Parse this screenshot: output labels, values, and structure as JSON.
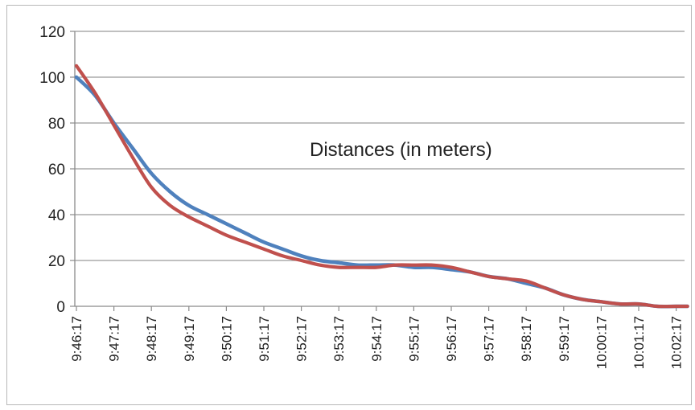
{
  "chart_data": {
    "type": "line",
    "annotation": "Distances (in meters)",
    "ylim": [
      0,
      120
    ],
    "y_ticks": [
      0,
      20,
      40,
      60,
      80,
      100,
      120
    ],
    "x_tick_labels": [
      "9:46:17",
      "9:47:17",
      "9:48:17",
      "9:49:17",
      "9:50:17",
      "9:51:17",
      "9:52:17",
      "9:53:17",
      "9:54:17",
      "9:55:17",
      "9:56:17",
      "9:57:17",
      "9:58:17",
      "9:59:17",
      "10:00:17",
      "10:01:17",
      "10:02:17"
    ],
    "grid": true,
    "legend": "none",
    "x_minutes_from_first_tick": [
      0,
      0.5,
      1,
      1.5,
      2,
      2.5,
      3,
      3.5,
      4,
      4.5,
      5,
      5.5,
      6,
      6.5,
      7,
      7.5,
      8,
      8.5,
      9,
      9.5,
      10,
      10.5,
      11,
      11.5,
      12,
      12.5,
      13,
      13.5,
      14,
      14.5,
      15,
      15.5,
      16,
      16.3
    ],
    "series": [
      {
        "color": "#4f81bd",
        "values": [
          100,
          92,
          80,
          69,
          58,
          50,
          44,
          40,
          36,
          32,
          28,
          25,
          22,
          20,
          19,
          18,
          18,
          18,
          17,
          17,
          16,
          15,
          13,
          12,
          10,
          8,
          5,
          3,
          2,
          1,
          1,
          0,
          0,
          0
        ]
      },
      {
        "color": "#c0504d",
        "values": [
          105,
          93,
          79,
          65,
          52,
          44,
          39,
          35,
          31,
          28,
          25,
          22,
          20,
          18,
          17,
          17,
          17,
          18,
          18,
          18,
          17,
          15,
          13,
          12,
          11,
          8,
          5,
          3,
          2,
          1,
          1,
          0,
          0,
          0
        ]
      }
    ]
  }
}
